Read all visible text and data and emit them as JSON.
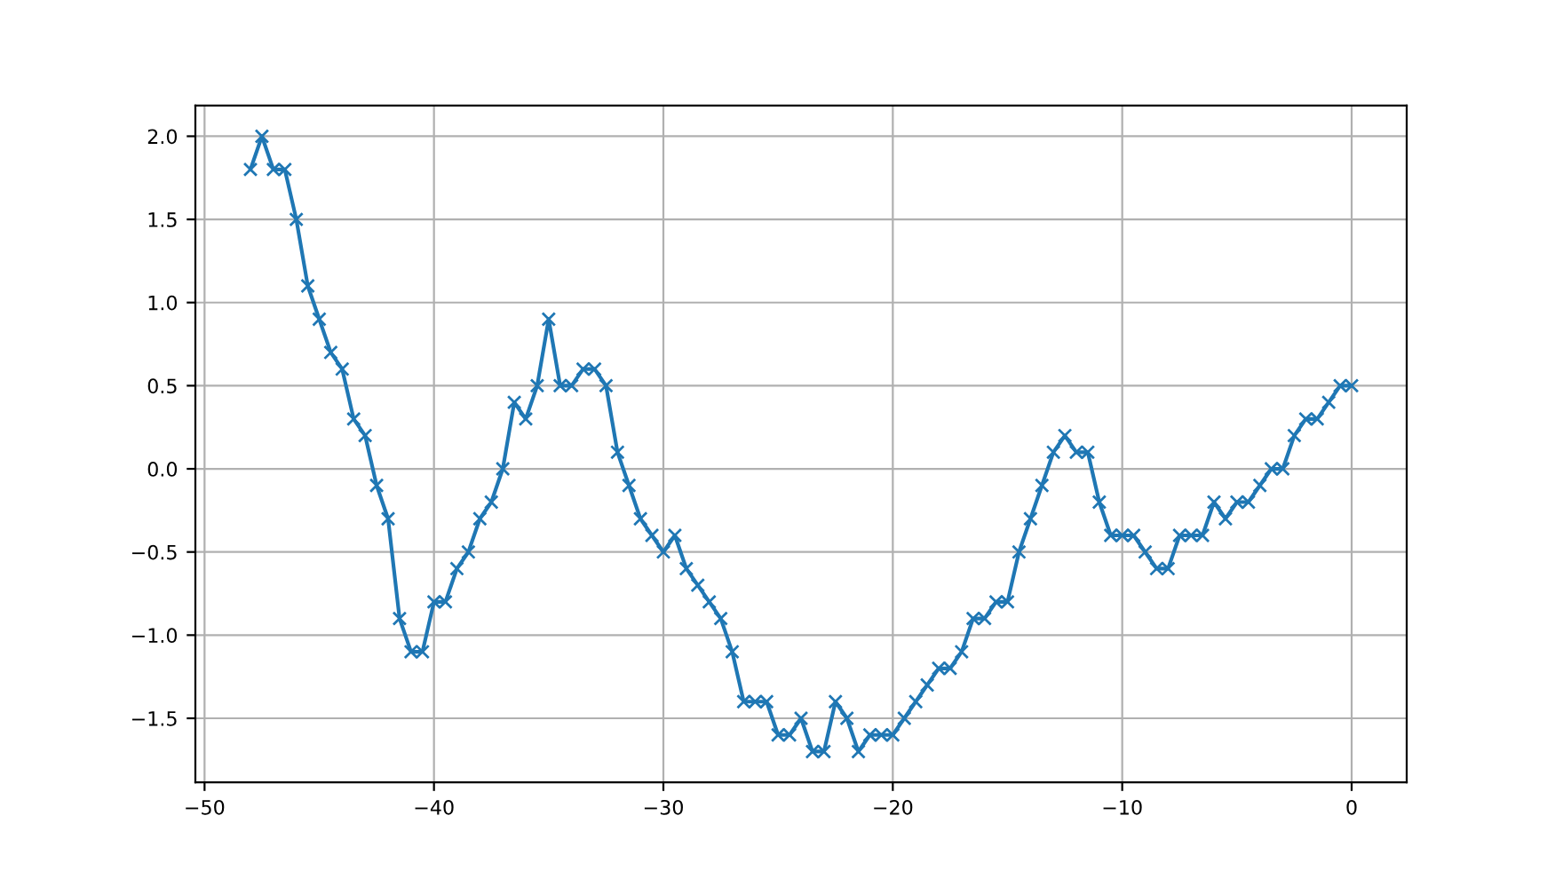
{
  "chart_data": {
    "type": "line",
    "marker": "cross",
    "line_style": "solid",
    "grid": true,
    "x": [
      -48,
      -47.5,
      -47,
      -46.5,
      -46,
      -45.5,
      -45,
      -44.5,
      -44,
      -43.5,
      -43,
      -42.5,
      -42,
      -41.5,
      -41,
      -40.5,
      -40,
      -39.5,
      -39,
      -38.5,
      -38,
      -37.5,
      -37,
      -36.5,
      -36,
      -35.5,
      -35,
      -34.5,
      -34,
      -33.5,
      -33,
      -32.5,
      -32,
      -31.5,
      -31,
      -30.5,
      -30,
      -29.5,
      -29,
      -28.5,
      -28,
      -27.5,
      -27,
      -26.5,
      -26,
      -25.5,
      -25,
      -24.5,
      -24,
      -23.5,
      -23,
      -22.5,
      -22,
      -21.5,
      -21,
      -20.5,
      -20,
      -19.5,
      -19,
      -18.5,
      -18,
      -17.5,
      -17,
      -16.5,
      -16,
      -15.5,
      -15,
      -14.5,
      -14,
      -13.5,
      -13,
      -12.5,
      -12,
      -11.5,
      -11,
      -10.5,
      -10,
      -9.5,
      -9,
      -8.5,
      -8,
      -7.5,
      -7,
      -6.5,
      -6,
      -5.5,
      -5,
      -4.5,
      -4,
      -3.5,
      -3,
      -2.5,
      -2,
      -1.5,
      -1,
      -0.5,
      0
    ],
    "series": [
      {
        "color": "#1f77b4",
        "values": [
          1.8,
          2.0,
          1.8,
          1.8,
          1.5,
          1.1,
          0.9,
          0.7,
          0.6,
          0.3,
          0.2,
          -0.1,
          -0.3,
          -0.9,
          -1.1,
          -1.1,
          -0.8,
          -0.8,
          -0.6,
          -0.5,
          -0.3,
          -0.2,
          0.0,
          0.4,
          0.3,
          0.5,
          0.9,
          0.5,
          0.5,
          0.6,
          0.6,
          0.5,
          0.1,
          -0.1,
          -0.3,
          -0.4,
          -0.5,
          -0.4,
          -0.6,
          -0.7,
          -0.8,
          -0.9,
          -1.1,
          -1.4,
          -1.4,
          -1.4,
          -1.6,
          -1.6,
          -1.5,
          -1.7,
          -1.7,
          -1.4,
          -1.5,
          -1.7,
          -1.6,
          -1.6,
          -1.6,
          -1.5,
          -1.4,
          -1.3,
          -1.2,
          -1.2,
          -1.1,
          -0.9,
          -0.9,
          -0.8,
          -0.8,
          -0.5,
          -0.3,
          -0.1,
          0.1,
          0.2,
          0.1,
          0.1,
          -0.2,
          -0.4,
          -0.4,
          -0.4,
          -0.5,
          -0.6,
          -0.6,
          -0.4,
          -0.4,
          -0.4,
          -0.2,
          -0.3,
          -0.2,
          -0.2,
          -0.1,
          0.0,
          0.0,
          0.2,
          0.3,
          0.3,
          0.4,
          0.5,
          0.5
        ]
      }
    ],
    "xlim": [
      -50.4,
      2.4
    ],
    "ylim": [
      -1.885,
      2.185
    ],
    "xticks": [
      {
        "value": -50,
        "label": "−50"
      },
      {
        "value": -40,
        "label": "−40"
      },
      {
        "value": -30,
        "label": "−30"
      },
      {
        "value": -20,
        "label": "−20"
      },
      {
        "value": -10,
        "label": "−10"
      },
      0
    ],
    "yticks": [
      {
        "value": -1.5,
        "label": "−1.5"
      },
      {
        "value": -1.0,
        "label": "−1.0"
      },
      {
        "value": -0.5,
        "label": "−0.5"
      },
      {
        "value": 0,
        "label": "0.0"
      },
      {
        "value": 0.5,
        "label": "0.5"
      },
      {
        "value": 1.0,
        "label": "1.0"
      },
      {
        "value": 1.5,
        "label": "1.5"
      },
      {
        "value": 2.0,
        "label": "2.0"
      }
    ]
  }
}
